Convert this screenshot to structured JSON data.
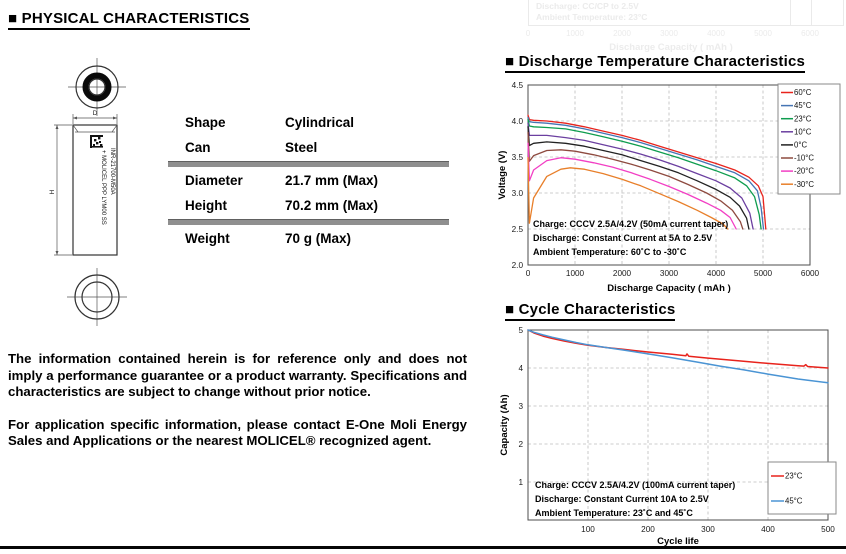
{
  "page": {
    "heading_physical": "■ PHYSICAL CHARACTERISTICS",
    "heading_discharge": "■ Discharge Temperature Characteristics",
    "heading_cycle": "■ Cycle Characteristics"
  },
  "battery_drawing": {
    "label_model": "INR-21700-M50A",
    "label_brand": "+ MOLICEL PPP LYM00 SS",
    "dim_diameter": "D",
    "dim_height": "H"
  },
  "spec_table": {
    "rows": [
      {
        "label": "Shape",
        "value": "Cylindrical"
      },
      {
        "label": "Can",
        "value": "Steel"
      },
      {
        "label": "Diameter",
        "value": "21.7 mm (Max)"
      },
      {
        "label": "Height",
        "value": "70.2 mm (Max)"
      },
      {
        "label": "Weight",
        "value": "70 g (Max)"
      }
    ]
  },
  "disclaimer": {
    "para1": "The information contained herein is for reference only and does not imply a performance guarantee or a product warranty.  Specifications and characteristics are subject to change without prior notice.",
    "para2": "For application specific information, please contact E-One Moli Energy Sales and Applications or the nearest MOLICEL® recognized agent."
  },
  "ghost_fragment": {
    "line1": "Discharge: CC/CP to 2.5V",
    "line2": "Ambient Temperature: 23°C",
    "ticks": [
      "0",
      "1000",
      "2000",
      "3000",
      "4000",
      "5000",
      "6000"
    ],
    "axis_title": "Discharge Capacity ( mAh )"
  },
  "chart_data": [
    {
      "type": "line",
      "title": "Discharge Temperature Characteristics",
      "xlabel": "Discharge Capacity ( mAh )",
      "ylabel": "Voltage (V)",
      "xlim": [
        0,
        6000
      ],
      "ylim": [
        2.0,
        4.5
      ],
      "xticks": [
        0,
        1000,
        2000,
        3000,
        4000,
        5000,
        6000
      ],
      "xtick_labels": [
        "0",
        "1000",
        "2000",
        "3000",
        "4000",
        "5000",
        "6000"
      ],
      "yticks": [
        2.0,
        2.5,
        3.0,
        3.5,
        4.0,
        4.5
      ],
      "ytick_labels": [
        "2.0",
        "2.5",
        "3.0",
        "3.5",
        "4.0",
        "4.5"
      ],
      "grid": true,
      "legend_position": "top-right",
      "annotations": [
        "Charge: CCCV 2.5A/4.2V (50mA current taper)",
        "Discharge: Constant Current at 5A to 2.5V",
        "Ambient Temperature: 60˚C to -30˚C"
      ],
      "series": [
        {
          "name": "60°C",
          "color": "#e8231c",
          "points": [
            [
              0,
              4.08
            ],
            [
              30,
              4.02
            ],
            [
              120,
              4.01
            ],
            [
              400,
              4.0
            ],
            [
              800,
              3.97
            ],
            [
              1200,
              3.92
            ],
            [
              1600,
              3.86
            ],
            [
              2000,
              3.8
            ],
            [
              2400,
              3.73
            ],
            [
              2800,
              3.65
            ],
            [
              3200,
              3.57
            ],
            [
              3600,
              3.49
            ],
            [
              4000,
              3.41
            ],
            [
              4400,
              3.32
            ],
            [
              4700,
              3.22
            ],
            [
              4900,
              3.1
            ],
            [
              5000,
              2.95
            ],
            [
              5060,
              2.5
            ]
          ]
        },
        {
          "name": "45°C",
          "color": "#4575b4",
          "points": [
            [
              0,
              4.05
            ],
            [
              30,
              3.99
            ],
            [
              120,
              3.98
            ],
            [
              400,
              3.97
            ],
            [
              800,
              3.94
            ],
            [
              1200,
              3.89
            ],
            [
              1600,
              3.83
            ],
            [
              2000,
              3.77
            ],
            [
              2400,
              3.7
            ],
            [
              2800,
              3.62
            ],
            [
              3200,
              3.54
            ],
            [
              3600,
              3.46
            ],
            [
              4000,
              3.37
            ],
            [
              4400,
              3.28
            ],
            [
              4700,
              3.17
            ],
            [
              4880,
              3.03
            ],
            [
              4960,
              2.8
            ],
            [
              5010,
              2.5
            ]
          ]
        },
        {
          "name": "23°C",
          "color": "#0f9d4f",
          "points": [
            [
              0,
              4.02
            ],
            [
              30,
              3.93
            ],
            [
              120,
              3.92
            ],
            [
              400,
              3.91
            ],
            [
              800,
              3.89
            ],
            [
              1200,
              3.84
            ],
            [
              1600,
              3.78
            ],
            [
              2000,
              3.72
            ],
            [
              2400,
              3.65
            ],
            [
              2800,
              3.57
            ],
            [
              3200,
              3.49
            ],
            [
              3600,
              3.4
            ],
            [
              4000,
              3.31
            ],
            [
              4400,
              3.21
            ],
            [
              4650,
              3.1
            ],
            [
              4820,
              2.95
            ],
            [
              4920,
              2.7
            ],
            [
              4960,
              2.5
            ]
          ]
        },
        {
          "name": "10°C",
          "color": "#6b3fa0",
          "points": [
            [
              0,
              3.97
            ],
            [
              30,
              3.8
            ],
            [
              120,
              3.8
            ],
            [
              400,
              3.8
            ],
            [
              800,
              3.77
            ],
            [
              1200,
              3.73
            ],
            [
              1600,
              3.67
            ],
            [
              2000,
              3.61
            ],
            [
              2400,
              3.54
            ],
            [
              2800,
              3.46
            ],
            [
              3200,
              3.37
            ],
            [
              3600,
              3.27
            ],
            [
              4000,
              3.17
            ],
            [
              4300,
              3.07
            ],
            [
              4550,
              2.93
            ],
            [
              4720,
              2.72
            ],
            [
              4790,
              2.5
            ]
          ]
        },
        {
          "name": "0°C",
          "color": "#222222",
          "points": [
            [
              0,
              3.92
            ],
            [
              30,
              3.66
            ],
            [
              120,
              3.69
            ],
            [
              400,
              3.71
            ],
            [
              800,
              3.69
            ],
            [
              1200,
              3.65
            ],
            [
              1600,
              3.59
            ],
            [
              2000,
              3.53
            ],
            [
              2400,
              3.45
            ],
            [
              2800,
              3.37
            ],
            [
              3200,
              3.28
            ],
            [
              3600,
              3.17
            ],
            [
              4000,
              3.05
            ],
            [
              4300,
              2.94
            ],
            [
              4500,
              2.82
            ],
            [
              4650,
              2.65
            ],
            [
              4700,
              2.5
            ]
          ]
        },
        {
          "name": "-10°C",
          "color": "#8e4a3f",
          "points": [
            [
              0,
              3.84
            ],
            [
              30,
              3.44
            ],
            [
              120,
              3.52
            ],
            [
              400,
              3.59
            ],
            [
              700,
              3.6
            ],
            [
              1000,
              3.58
            ],
            [
              1400,
              3.53
            ],
            [
              1800,
              3.47
            ],
            [
              2200,
              3.4
            ],
            [
              2600,
              3.32
            ],
            [
              3000,
              3.23
            ],
            [
              3400,
              3.12
            ],
            [
              3800,
              3.0
            ],
            [
              4100,
              2.89
            ],
            [
              4350,
              2.76
            ],
            [
              4520,
              2.6
            ],
            [
              4570,
              2.5
            ]
          ]
        },
        {
          "name": "-20°C",
          "color": "#f23fc4",
          "points": [
            [
              0,
              3.69
            ],
            [
              30,
              3.17
            ],
            [
              120,
              3.32
            ],
            [
              400,
              3.45
            ],
            [
              700,
              3.49
            ],
            [
              1000,
              3.47
            ],
            [
              1400,
              3.42
            ],
            [
              1800,
              3.36
            ],
            [
              2200,
              3.28
            ],
            [
              2600,
              3.19
            ],
            [
              3000,
              3.09
            ],
            [
              3400,
              2.98
            ],
            [
              3800,
              2.86
            ],
            [
              4100,
              2.76
            ],
            [
              4300,
              2.66
            ],
            [
              4430,
              2.5
            ]
          ]
        },
        {
          "name": "-30°C",
          "color": "#e87f2a",
          "points": [
            [
              0,
              3.49
            ],
            [
              30,
              2.58
            ],
            [
              120,
              2.93
            ],
            [
              400,
              3.23
            ],
            [
              700,
              3.33
            ],
            [
              900,
              3.35
            ],
            [
              1200,
              3.33
            ],
            [
              1600,
              3.27
            ],
            [
              2000,
              3.19
            ],
            [
              2400,
              3.1
            ],
            [
              2800,
              2.99
            ],
            [
              3200,
              2.88
            ],
            [
              3600,
              2.76
            ],
            [
              3900,
              2.66
            ],
            [
              4150,
              2.57
            ],
            [
              4250,
              2.5
            ]
          ]
        }
      ]
    },
    {
      "type": "line",
      "title": "Cycle Characteristics",
      "xlabel": "Cycle life",
      "ylabel": "Capacity (Ah)",
      "xlim": [
        0,
        500
      ],
      "ylim": [
        0,
        5
      ],
      "xticks": [
        0,
        100,
        200,
        300,
        400,
        500
      ],
      "xtick_labels": [
        "",
        "100",
        "200",
        "300",
        "400",
        "500"
      ],
      "yticks": [
        1,
        2,
        3,
        4,
        5
      ],
      "ytick_labels": [
        "1",
        "2",
        "3",
        "4",
        "5"
      ],
      "grid": true,
      "legend_position": "bottom-right",
      "annotations": [
        "Charge: CCCV 2.5A/4.2V (100mA current taper)",
        "Discharge: Constant Current 10A to 2.5V",
        "Ambient Temperature: 23˚C and 45˚C"
      ],
      "series": [
        {
          "name": "23°C",
          "color": "#e8231c",
          "points": [
            [
              0,
              5.0
            ],
            [
              10,
              4.92
            ],
            [
              25,
              4.84
            ],
            [
              40,
              4.78
            ],
            [
              60,
              4.71
            ],
            [
              80,
              4.65
            ],
            [
              100,
              4.6
            ],
            [
              130,
              4.54
            ],
            [
              160,
              4.49
            ],
            [
              200,
              4.42
            ],
            [
              240,
              4.36
            ],
            [
              263,
              4.32
            ],
            [
              265,
              4.37
            ],
            [
              268,
              4.31
            ],
            [
              300,
              4.26
            ],
            [
              350,
              4.19
            ],
            [
              400,
              4.12
            ],
            [
              450,
              4.06
            ],
            [
              460,
              4.05
            ],
            [
              463,
              4.09
            ],
            [
              466,
              4.04
            ],
            [
              500,
              4.0
            ]
          ]
        },
        {
          "name": "45°C",
          "color": "#4a94d4",
          "points": [
            [
              0,
              5.0
            ],
            [
              10,
              4.94
            ],
            [
              25,
              4.87
            ],
            [
              40,
              4.81
            ],
            [
              60,
              4.74
            ],
            [
              80,
              4.67
            ],
            [
              100,
              4.61
            ],
            [
              130,
              4.54
            ],
            [
              160,
              4.47
            ],
            [
              200,
              4.37
            ],
            [
              240,
              4.27
            ],
            [
              280,
              4.16
            ],
            [
              320,
              4.05
            ],
            [
              360,
              3.95
            ],
            [
              400,
              3.84
            ],
            [
              450,
              3.71
            ],
            [
              500,
              3.61
            ]
          ]
        }
      ]
    }
  ]
}
